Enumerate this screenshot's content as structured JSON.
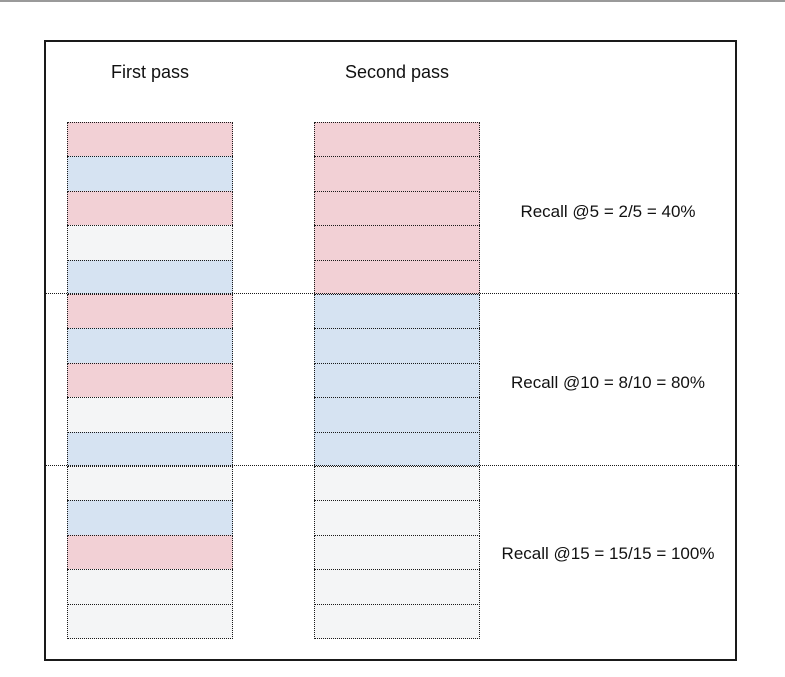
{
  "colors": {
    "relevant": "#f2d0d5",
    "partial": "#d6e3f2",
    "irrelevant": "#f4f5f6"
  },
  "columns": [
    {
      "title": "First pass",
      "cells": [
        "relevant",
        "partial",
        "relevant",
        "irrelevant",
        "partial",
        "relevant",
        "partial",
        "relevant",
        "irrelevant",
        "partial",
        "irrelevant",
        "partial",
        "relevant",
        "irrelevant",
        "irrelevant"
      ]
    },
    {
      "title": "Second pass",
      "cells": [
        "relevant",
        "relevant",
        "relevant",
        "relevant",
        "relevant",
        "partial",
        "partial",
        "partial",
        "partial",
        "partial",
        "irrelevant",
        "irrelevant",
        "irrelevant",
        "irrelevant",
        "irrelevant"
      ]
    }
  ],
  "recall_labels": [
    "Recall @5 = 2/5 = 40%",
    "Recall @10 = 8/10 = 80%",
    "Recall @15 = 15/15 = 100%"
  ]
}
